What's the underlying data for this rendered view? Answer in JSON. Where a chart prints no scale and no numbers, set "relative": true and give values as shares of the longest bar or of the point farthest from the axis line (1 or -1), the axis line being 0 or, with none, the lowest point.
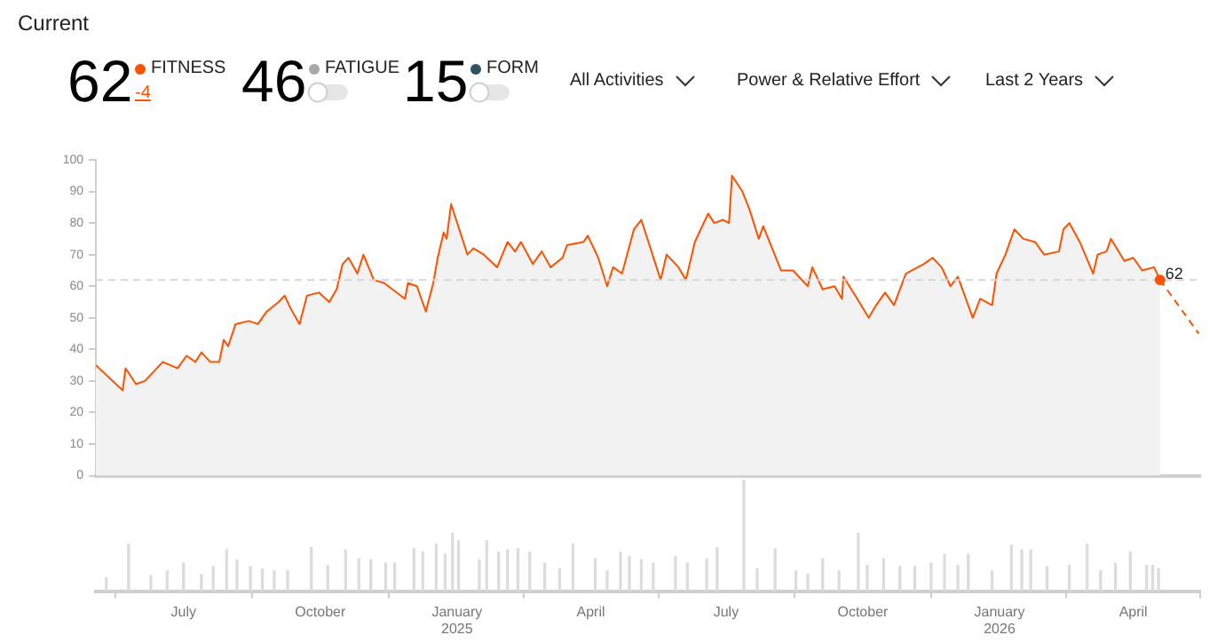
{
  "chart_data": [
    {
      "type": "other",
      "title": "Current",
      "annotations": [
        "62",
        "FITNESS",
        "-4",
        "46",
        "FATIGUE",
        "15",
        "FORM",
        "All Activities",
        "Power & Relative Effort",
        "Last 2 Years"
      ]
    },
    {
      "type": "area",
      "xlim": [
        "2024-05-03",
        "2026-05-16"
      ],
      "ylim": [
        0,
        100
      ],
      "yticks": [
        0,
        10,
        20,
        30,
        40,
        50,
        60,
        70,
        80,
        90,
        100
      ],
      "tick_labels": "y",
      "grid": false,
      "legend": false,
      "marker": "none",
      "series": [
        {
          "color": "#fc5200",
          "x": [
            "2024-05-03",
            "2024-05-21",
            "2024-05-23",
            "2024-05-30",
            "2024-06-05",
            "2024-06-17",
            "2024-06-27",
            "2024-07-03",
            "2024-07-09",
            "2024-07-13",
            "2024-07-19",
            "2024-07-25",
            "2024-07-28",
            "2024-07-31",
            "2024-08-05",
            "2024-08-14",
            "2024-08-20",
            "2024-08-26",
            "2024-09-03",
            "2024-09-07",
            "2024-09-11",
            "2024-09-17",
            "2024-09-22",
            "2024-09-30",
            "2024-10-07",
            "2024-10-12",
            "2024-10-16",
            "2024-10-20",
            "2024-10-26",
            "2024-10-30",
            "2024-11-06",
            "2024-11-13",
            "2024-11-27",
            "2024-11-29",
            "2024-12-05",
            "2024-12-11",
            "2024-12-16",
            "2024-12-19",
            "2024-12-23",
            "2024-12-25",
            "2024-12-28",
            "2025-01-08",
            "2025-01-12",
            "2025-01-19",
            "2025-01-28",
            "2025-02-04",
            "2025-02-09",
            "2025-02-13",
            "2025-02-21",
            "2025-02-27",
            "2025-03-05",
            "2025-03-13",
            "2025-03-16",
            "2025-03-27",
            "2025-03-30",
            "2025-04-06",
            "2025-04-12",
            "2025-04-16",
            "2025-04-22",
            "2025-04-30",
            "2025-05-05",
            "2025-05-18",
            "2025-05-22",
            "2025-05-30",
            "2025-06-04",
            "2025-06-10",
            "2025-06-19",
            "2025-06-23",
            "2025-06-29",
            "2025-07-03",
            "2025-07-05",
            "2025-07-12",
            "2025-07-17",
            "2025-07-23",
            "2025-07-26",
            "2025-08-07",
            "2025-08-15",
            "2025-08-25",
            "2025-08-28",
            "2025-09-04",
            "2025-09-12",
            "2025-09-17",
            "2025-09-18",
            "2025-09-26",
            "2025-10-05",
            "2025-10-10",
            "2025-10-16",
            "2025-10-22",
            "2025-10-30",
            "2025-11-07",
            "2025-11-11",
            "2025-11-17",
            "2025-11-23",
            "2025-11-29",
            "2025-12-04",
            "2025-12-14",
            "2025-12-19",
            "2025-12-27",
            "2025-12-30",
            "2026-01-05",
            "2026-01-11",
            "2026-01-17",
            "2026-01-25",
            "2026-01-31",
            "2026-02-10",
            "2026-02-13",
            "2026-02-17",
            "2026-02-24",
            "2026-03-05",
            "2026-03-08",
            "2026-03-14",
            "2026-03-17",
            "2026-03-26",
            "2026-04-01",
            "2026-04-07",
            "2026-04-15",
            "2026-04-19"
          ],
          "values": [
            35,
            27,
            34,
            29,
            30,
            36,
            34,
            38,
            36,
            39,
            36,
            36,
            43,
            41,
            48,
            49,
            48,
            52,
            55,
            57,
            53,
            48,
            57,
            58,
            55,
            59,
            67,
            69,
            64,
            70,
            62,
            61,
            56,
            61,
            60,
            52,
            61,
            69,
            77,
            75,
            86,
            70,
            72,
            70,
            66,
            74,
            71,
            74,
            67,
            71,
            66,
            69,
            73,
            74,
            76,
            69,
            60,
            66,
            64,
            78,
            81,
            62,
            70,
            66,
            62,
            74,
            83,
            80,
            81,
            80,
            95,
            90,
            84,
            75,
            79,
            65,
            65,
            60,
            66,
            59,
            60,
            56,
            63,
            57,
            50,
            54,
            58,
            54,
            64,
            66,
            67,
            69,
            66,
            60,
            63,
            50,
            56,
            54,
            64,
            70,
            78,
            75,
            74,
            70,
            71,
            78,
            80,
            74,
            64,
            70,
            71,
            75,
            68,
            69,
            65,
            66,
            62
          ]
        },
        {
          "type": "line",
          "color": "#fc5200",
          "line_style": "dashed",
          "x": [
            "2026-04-19",
            "2026-05-15"
          ],
          "values": [
            62,
            45
          ]
        }
      ],
      "ref_lines": [
        {
          "axis": "y",
          "value": 62,
          "color": "#d6d6d6",
          "line_style": "dashed"
        }
      ],
      "annotations": [
        {
          "text": "62",
          "x": "2026-04-19",
          "y": 62
        }
      ]
    },
    {
      "type": "bar",
      "relative": true,
      "color": "#dcdcdc",
      "tick_labels": "x",
      "grid": false,
      "legend": false,
      "xlim": [
        "2024-05-03",
        "2026-05-16"
      ],
      "xticks": [
        {
          "value": "2024-07-01",
          "label": "July"
        },
        {
          "value": "2024-10-01",
          "label": "October"
        },
        {
          "value": "2025-01-01",
          "label": "January 2025"
        },
        {
          "value": "2025-04-01",
          "label": "April"
        },
        {
          "value": "2025-07-01",
          "label": "July"
        },
        {
          "value": "2025-10-01",
          "label": "October"
        },
        {
          "value": "2026-01-01",
          "label": "January 2026"
        },
        {
          "value": "2026-04-01",
          "label": "April"
        }
      ],
      "x": [
        "2024-05-10",
        "2024-05-25",
        "2024-06-09",
        "2024-06-20",
        "2024-07-01",
        "2024-07-13",
        "2024-07-21",
        "2024-07-30",
        "2024-08-06",
        "2024-08-15",
        "2024-08-23",
        "2024-08-31",
        "2024-09-09",
        "2024-09-25",
        "2024-10-06",
        "2024-10-18",
        "2024-10-27",
        "2024-11-04",
        "2024-11-14",
        "2024-11-20",
        "2024-12-03",
        "2024-12-09",
        "2024-12-18",
        "2024-12-24",
        "2024-12-29",
        "2025-01-02",
        "2025-01-16",
        "2025-01-21",
        "2025-01-29",
        "2025-02-04",
        "2025-02-11",
        "2025-02-19",
        "2025-03-01",
        "2025-03-11",
        "2025-03-20",
        "2025-04-04",
        "2025-04-12",
        "2025-04-21",
        "2025-04-27",
        "2025-05-05",
        "2025-05-13",
        "2025-05-28",
        "2025-06-05",
        "2025-06-18",
        "2025-06-25",
        "2025-07-13",
        "2025-07-22",
        "2025-08-03",
        "2025-08-17",
        "2025-08-25",
        "2025-09-04",
        "2025-09-15",
        "2025-09-28",
        "2025-10-04",
        "2025-10-15",
        "2025-10-26",
        "2025-11-05",
        "2025-11-16",
        "2025-11-25",
        "2025-12-04",
        "2025-12-11",
        "2025-12-27",
        "2026-01-09",
        "2026-01-16",
        "2026-01-22",
        "2026-02-02",
        "2026-02-17",
        "2026-03-01",
        "2026-03-10",
        "2026-03-20",
        "2026-03-30",
        "2026-04-10",
        "2026-04-14",
        "2026-04-18"
      ],
      "values": [
        0.12,
        0.42,
        0.14,
        0.18,
        0.25,
        0.15,
        0.22,
        0.37,
        0.28,
        0.22,
        0.2,
        0.18,
        0.18,
        0.39,
        0.23,
        0.37,
        0.29,
        0.28,
        0.25,
        0.25,
        0.38,
        0.35,
        0.42,
        0.33,
        0.52,
        0.45,
        0.28,
        0.45,
        0.35,
        0.37,
        0.38,
        0.35,
        0.25,
        0.2,
        0.42,
        0.29,
        0.18,
        0.35,
        0.31,
        0.28,
        0.25,
        0.31,
        0.25,
        0.29,
        0.39,
        1,
        0.2,
        0.38,
        0.18,
        0.15,
        0.29,
        0.18,
        0.52,
        0.23,
        0.29,
        0.22,
        0.22,
        0.25,
        0.33,
        0.23,
        0.33,
        0.18,
        0.41,
        0.37,
        0.37,
        0.22,
        0.23,
        0.42,
        0.18,
        0.25,
        0.35,
        0.23,
        0.23,
        0.2
      ]
    }
  ]
}
